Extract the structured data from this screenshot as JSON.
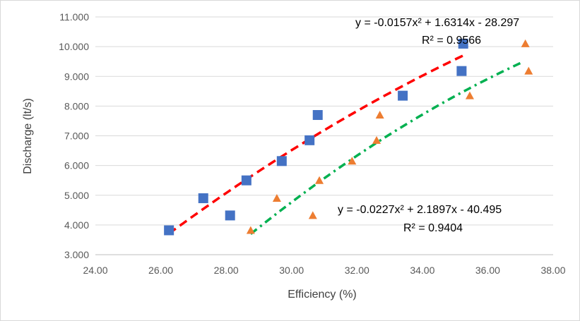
{
  "chart_data": {
    "type": "scatter",
    "xlabel": "Efficiency (%)",
    "ylabel": "Discharge (lt/s)",
    "xlim": [
      24,
      38
    ],
    "ylim": [
      3,
      11
    ],
    "x_ticks": [
      "24.00",
      "26.00",
      "28.00",
      "30.00",
      "32.00",
      "34.00",
      "36.00",
      "38.00"
    ],
    "y_ticks": [
      "3.000",
      "4.000",
      "5.000",
      "6.000",
      "7.000",
      "8.000",
      "9.000",
      "10.000",
      "11.000"
    ],
    "grid": "horizontal",
    "legend": "none",
    "series": [
      {
        "marker": "square",
        "color": "#4472c4",
        "points": [
          [
            26.25,
            3.82
          ],
          [
            27.3,
            4.9
          ],
          [
            28.12,
            4.32
          ],
          [
            28.62,
            5.5
          ],
          [
            29.7,
            6.15
          ],
          [
            30.55,
            6.85
          ],
          [
            30.8,
            7.7
          ],
          [
            33.4,
            8.35
          ],
          [
            35.2,
            9.18
          ],
          [
            35.25,
            10.1
          ]
        ],
        "trendline": {
          "kind": "poly2",
          "coeffs": [
            -0.0157,
            1.6314,
            -28.297
          ],
          "x_range": [
            26.25,
            35.25
          ],
          "color": "#ff0000",
          "style": "dashed",
          "equation": "y = -0.0157x² + 1.6314x - 28.297",
          "r2": "R² = 0.9566"
        }
      },
      {
        "marker": "triangle",
        "color": "#ed7d31",
        "points": [
          [
            28.75,
            3.82
          ],
          [
            29.55,
            4.9
          ],
          [
            30.65,
            4.32
          ],
          [
            30.85,
            5.5
          ],
          [
            31.85,
            6.15
          ],
          [
            32.6,
            6.85
          ],
          [
            32.7,
            7.7
          ],
          [
            35.45,
            8.35
          ],
          [
            37.25,
            9.18
          ],
          [
            37.15,
            10.1
          ]
        ],
        "trendline": {
          "kind": "poly2",
          "coeffs": [
            -0.0227,
            2.1897,
            -40.495
          ],
          "x_range": [
            28.75,
            37.05
          ],
          "color": "#00b050",
          "style": "dash-dot",
          "equation": "y = -0.0227x² + 2.1897x - 40.495",
          "r2": "R² = 0.9404"
        }
      }
    ]
  }
}
